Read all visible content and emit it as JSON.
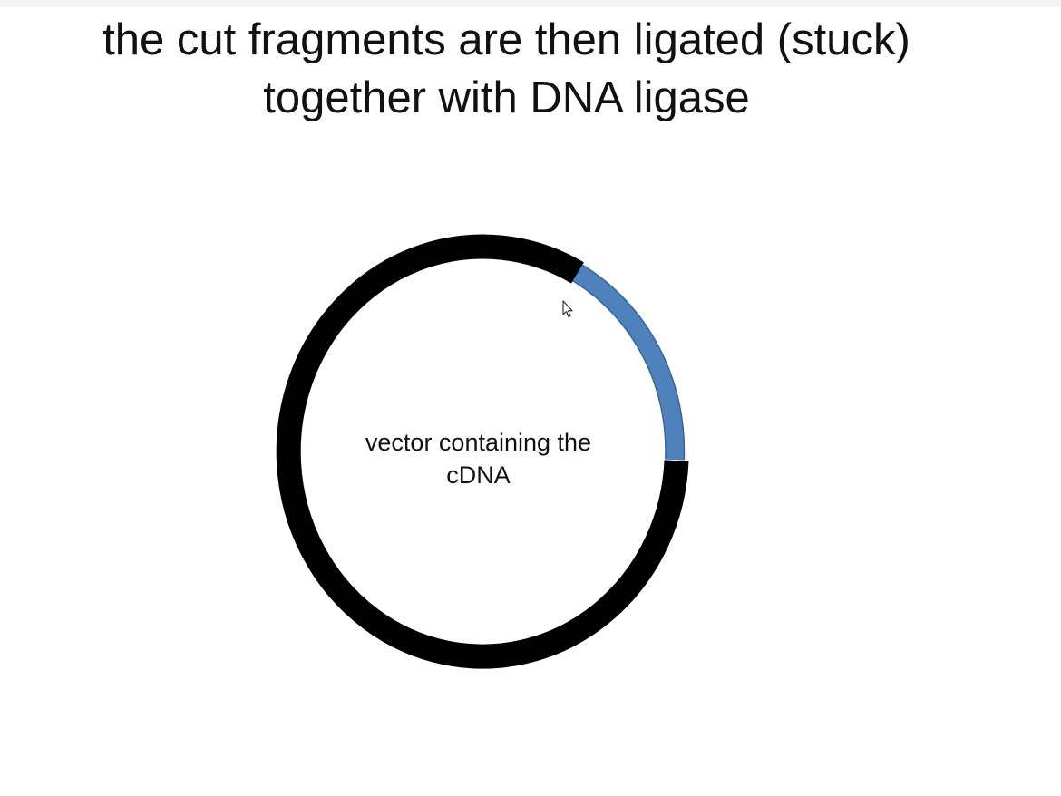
{
  "slide": {
    "title_line1": "the cut fragments are then ligated (stuck)",
    "title_line2": "together with DNA ligase"
  },
  "diagram": {
    "plasmid": {
      "label_line1": "vector containing the",
      "label_line2": "cDNA",
      "backbone_color": "#000000",
      "insert_color": "#4f81bd",
      "insert_border_color": "#3b6592"
    }
  },
  "cursor": {
    "icon": "mouse-pointer-icon"
  }
}
